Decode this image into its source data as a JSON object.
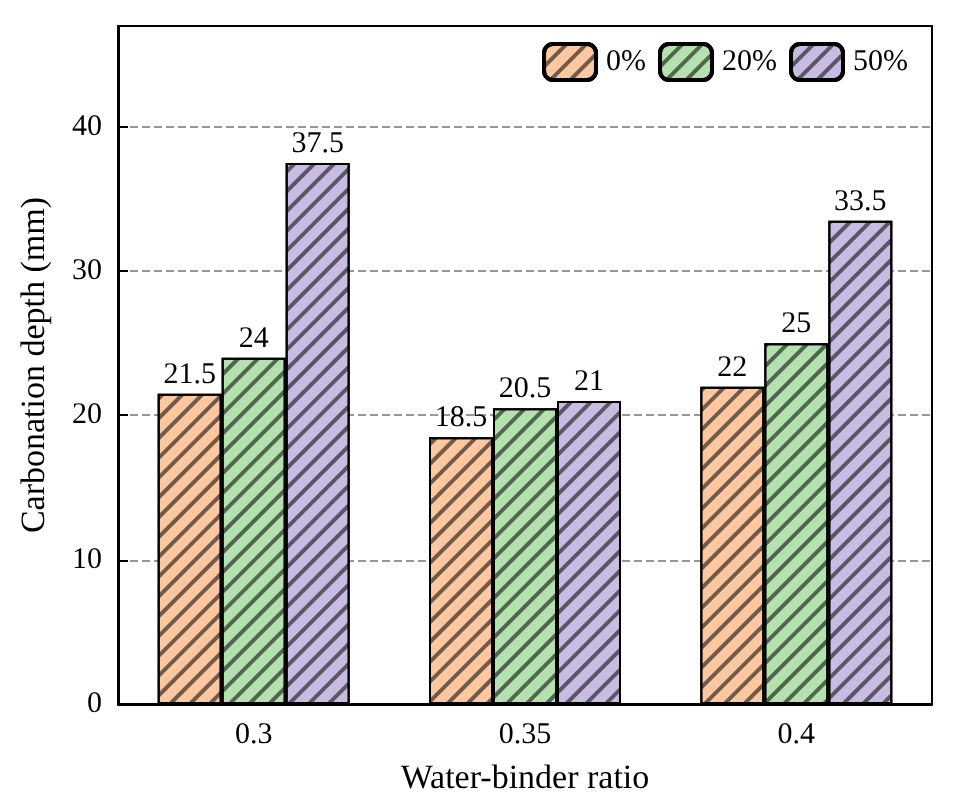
{
  "chart_data": {
    "type": "bar",
    "xlabel": "Water-binder ratio",
    "ylabel": "Carbonation depth (mm)",
    "categories": [
      "0.3",
      "0.35",
      "0.4"
    ],
    "series": [
      {
        "name": "0%",
        "color": "#fdc8a0",
        "values": [
          21.5,
          18.5,
          22
        ]
      },
      {
        "name": "20%",
        "color": "#b4e2ae",
        "values": [
          24,
          20.5,
          25
        ]
      },
      {
        "name": "50%",
        "color": "#c9bce2",
        "values": [
          37.5,
          21,
          33.5
        ]
      }
    ],
    "ylim": [
      0,
      47
    ],
    "yticks": [
      0,
      10,
      20,
      30,
      40
    ],
    "grid": "y",
    "legend": "top right",
    "data_labels": true
  }
}
